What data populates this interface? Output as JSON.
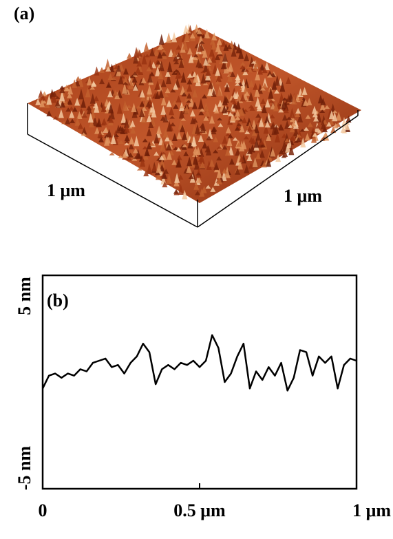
{
  "panel_a": {
    "label": "(a)",
    "left_label": "1 μm",
    "right_label": "1 μm"
  },
  "chart_data": {
    "type": "line",
    "label": "(b)",
    "x": [
      0,
      0.02,
      0.04,
      0.06,
      0.08,
      0.1,
      0.12,
      0.14,
      0.16,
      0.18,
      0.2,
      0.22,
      0.24,
      0.26,
      0.28,
      0.3,
      0.32,
      0.34,
      0.36,
      0.38,
      0.4,
      0.42,
      0.44,
      0.46,
      0.48,
      0.5,
      0.52,
      0.54,
      0.56,
      0.58,
      0.6,
      0.62,
      0.64,
      0.66,
      0.68,
      0.7,
      0.72,
      0.74,
      0.76,
      0.78,
      0.8,
      0.82,
      0.84,
      0.86,
      0.88,
      0.9,
      0.92,
      0.94,
      0.96,
      0.98,
      1
    ],
    "series": [
      {
        "color": "#000000",
        "values": [
          -0.3,
          0.3,
          0.4,
          0.2,
          0.4,
          0.3,
          0.6,
          0.5,
          0.9,
          1.0,
          1.1,
          0.7,
          0.8,
          0.4,
          0.9,
          1.2,
          1.8,
          1.4,
          -0.1,
          0.6,
          0.8,
          0.6,
          0.9,
          0.8,
          1.0,
          0.7,
          1.0,
          2.2,
          1.6,
          0.0,
          0.4,
          1.2,
          1.8,
          -0.3,
          0.5,
          0.1,
          0.7,
          0.3,
          0.9,
          -0.4,
          0.2,
          1.5,
          1.4,
          0.3,
          1.2,
          0.9,
          1.2,
          -0.3,
          0.8,
          1.1,
          1.0
        ]
      }
    ],
    "xlim": [
      0,
      1
    ],
    "ylim": [
      -5,
      5
    ],
    "xticks": [
      0,
      {
        "value": 0.5,
        "label": "0.5 μm"
      },
      {
        "value": 1,
        "label": "1 μm"
      }
    ],
    "yticks": [
      {
        "value": -5,
        "label": "-5 nm"
      },
      {
        "value": 5,
        "label": "5 nm"
      }
    ]
  }
}
